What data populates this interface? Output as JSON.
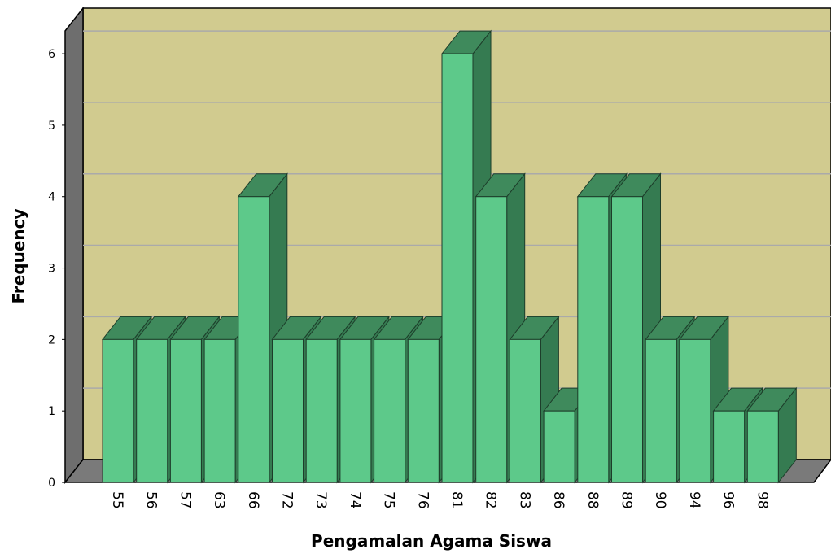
{
  "chart_data": {
    "type": "bar3d",
    "x_label": "Pengamalan Agama Siswa",
    "y_label": "Frequency",
    "categories": [
      "55",
      "56",
      "57",
      "63",
      "66",
      "72",
      "73",
      "74",
      "75",
      "76",
      "81",
      "82",
      "83",
      "86",
      "88",
      "89",
      "90",
      "94",
      "96",
      "98"
    ],
    "values": [
      2,
      2,
      2,
      2,
      4,
      2,
      2,
      2,
      2,
      2,
      6,
      4,
      2,
      1,
      4,
      4,
      2,
      2,
      1,
      1
    ],
    "color": "#5dc98a",
    "ylim": [
      0,
      6.32
    ],
    "yticks": [
      0,
      1,
      2,
      3,
      4,
      5,
      6
    ],
    "grid": true
  }
}
